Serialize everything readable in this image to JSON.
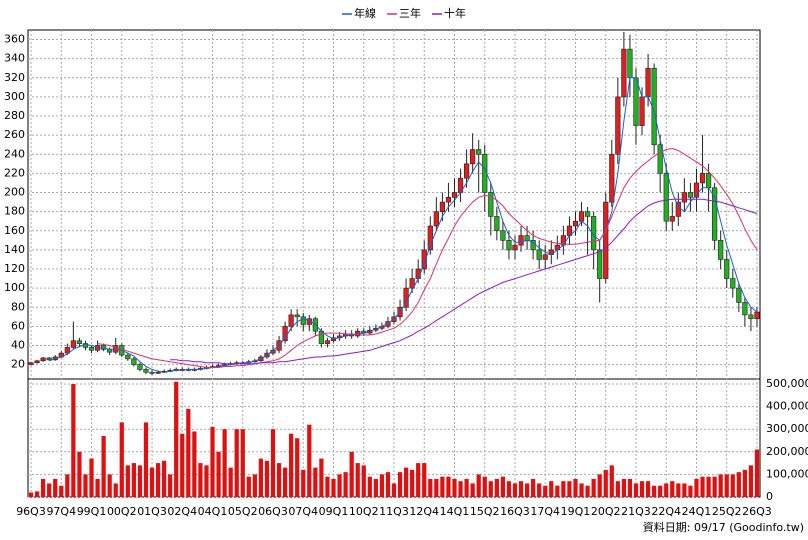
{
  "chart_data": {
    "type": "candlestick",
    "source": "資料日期: 09/17  (Goodinfo.tw)",
    "categories": [
      "96Q3",
      null,
      null,
      null,
      null,
      "97Q4",
      null,
      null,
      null,
      null,
      "99Q1",
      null,
      null,
      null,
      null,
      "00Q2",
      null,
      null,
      null,
      null,
      "01Q3",
      null,
      null,
      null,
      null,
      "02Q4",
      null,
      null,
      null,
      null,
      "04Q1",
      null,
      null,
      null,
      null,
      "05Q2",
      null,
      null,
      null,
      null,
      "06Q3",
      null,
      null,
      null,
      null,
      "07Q4",
      null,
      null,
      null,
      null,
      "09Q1",
      null,
      null,
      null,
      null,
      "10Q2",
      null,
      null,
      null,
      null,
      "11Q3",
      null,
      null,
      null,
      null,
      "12Q4",
      null,
      null,
      null,
      null,
      "14Q1",
      null,
      null,
      null,
      null,
      "15Q2",
      null,
      null,
      null,
      null,
      "16Q3",
      null,
      null,
      null,
      null,
      "17Q4",
      null,
      null,
      null,
      null,
      "19Q1",
      null,
      null,
      null,
      null,
      "20Q2",
      null,
      null,
      null,
      null,
      "21Q3",
      null,
      null,
      null,
      null,
      "22Q4",
      null,
      null,
      null,
      null,
      "24Q1",
      null,
      null,
      null,
      null,
      "25Q2",
      null,
      null,
      null,
      null,
      "26Q3"
    ],
    "open": [
      20,
      22,
      24,
      27,
      25,
      28,
      32,
      38,
      45,
      42,
      38,
      35,
      40,
      36,
      33,
      40,
      30,
      26,
      20,
      15,
      12,
      11,
      12,
      13,
      14,
      15,
      15,
      14,
      15,
      16,
      17,
      18,
      19,
      20,
      21,
      22,
      22,
      23,
      24,
      28,
      32,
      35,
      45,
      60,
      72,
      70,
      62,
      68,
      55,
      42,
      45,
      48,
      50,
      52,
      50,
      55,
      53,
      56,
      58,
      60,
      65,
      70,
      80,
      100,
      110,
      120,
      140,
      165,
      180,
      190,
      195,
      200,
      215,
      230,
      245,
      240,
      200,
      175,
      160,
      150,
      140,
      145,
      155,
      150,
      140,
      130,
      135,
      140,
      145,
      155,
      165,
      170,
      180,
      175,
      140,
      110,
      190,
      240,
      300,
      350,
      320,
      270,
      300,
      330,
      250,
      220,
      170,
      175,
      190,
      200,
      195,
      210,
      220,
      205,
      150,
      130,
      110,
      100,
      85,
      72,
      68
    ],
    "high": [
      23,
      25,
      28,
      28,
      30,
      34,
      42,
      65,
      48,
      45,
      40,
      45,
      42,
      38,
      48,
      42,
      32,
      28,
      22,
      17,
      14,
      14,
      15,
      16,
      17,
      17,
      17,
      17,
      18,
      19,
      20,
      21,
      22,
      23,
      24,
      24,
      25,
      26,
      30,
      36,
      40,
      50,
      65,
      78,
      78,
      74,
      72,
      70,
      58,
      48,
      52,
      54,
      56,
      56,
      58,
      58,
      60,
      62,
      64,
      70,
      75,
      88,
      110,
      120,
      130,
      150,
      175,
      195,
      200,
      210,
      215,
      225,
      245,
      262,
      255,
      250,
      210,
      185,
      170,
      160,
      155,
      165,
      165,
      160,
      150,
      145,
      150,
      155,
      165,
      175,
      180,
      190,
      185,
      180,
      150,
      200,
      255,
      320,
      368,
      365,
      330,
      310,
      345,
      335,
      260,
      230,
      190,
      200,
      215,
      210,
      225,
      260,
      230,
      210,
      160,
      140,
      120,
      105,
      90,
      80,
      80
    ],
    "low": [
      19,
      21,
      23,
      24,
      24,
      27,
      30,
      36,
      38,
      35,
      32,
      33,
      34,
      30,
      31,
      28,
      24,
      18,
      13,
      10,
      9,
      10,
      11,
      12,
      13,
      13,
      13,
      13,
      14,
      15,
      16,
      17,
      18,
      19,
      20,
      20,
      21,
      22,
      23,
      26,
      30,
      32,
      42,
      55,
      60,
      55,
      55,
      50,
      38,
      38,
      43,
      45,
      47,
      47,
      48,
      50,
      51,
      54,
      56,
      58,
      62,
      66,
      76,
      95,
      105,
      115,
      135,
      160,
      170,
      180,
      185,
      190,
      205,
      220,
      200,
      180,
      155,
      150,
      140,
      130,
      130,
      138,
      140,
      130,
      120,
      120,
      125,
      130,
      135,
      145,
      155,
      165,
      135,
      120,
      85,
      105,
      185,
      230,
      290,
      300,
      250,
      260,
      290,
      240,
      200,
      160,
      160,
      165,
      180,
      180,
      180,
      200,
      180,
      140,
      120,
      100,
      90,
      75,
      60,
      55,
      60
    ],
    "close": [
      22,
      24,
      27,
      25,
      28,
      32,
      38,
      45,
      42,
      38,
      35,
      40,
      36,
      33,
      40,
      30,
      26,
      20,
      15,
      12,
      11,
      12,
      13,
      14,
      15,
      15,
      14,
      15,
      16,
      17,
      18,
      19,
      20,
      21,
      22,
      22,
      23,
      24,
      28,
      32,
      35,
      45,
      60,
      72,
      70,
      62,
      68,
      55,
      42,
      45,
      48,
      50,
      52,
      50,
      55,
      53,
      56,
      58,
      60,
      65,
      70,
      80,
      100,
      110,
      120,
      140,
      165,
      180,
      190,
      195,
      200,
      215,
      230,
      245,
      240,
      200,
      175,
      160,
      150,
      140,
      145,
      155,
      150,
      140,
      130,
      135,
      140,
      145,
      155,
      165,
      170,
      180,
      175,
      140,
      110,
      190,
      240,
      300,
      350,
      320,
      270,
      300,
      330,
      250,
      220,
      170,
      175,
      190,
      200,
      195,
      210,
      220,
      205,
      150,
      130,
      110,
      100,
      85,
      72,
      68,
      75
    ],
    "volume": [
      20000,
      25000,
      80000,
      60000,
      80000,
      50000,
      100000,
      500000,
      200000,
      100000,
      170000,
      80000,
      270000,
      100000,
      60000,
      330000,
      140000,
      150000,
      140000,
      330000,
      130000,
      150000,
      160000,
      100000,
      510000,
      280000,
      390000,
      290000,
      150000,
      140000,
      310000,
      200000,
      300000,
      130000,
      300000,
      300000,
      90000,
      100000,
      170000,
      160000,
      300000,
      150000,
      130000,
      280000,
      260000,
      120000,
      320000,
      130000,
      170000,
      90000,
      80000,
      100000,
      110000,
      200000,
      150000,
      140000,
      90000,
      80000,
      100000,
      110000,
      60000,
      110000,
      130000,
      120000,
      150000,
      150000,
      80000,
      80000,
      90000,
      90000,
      80000,
      70000,
      80000,
      60000,
      100000,
      90000,
      70000,
      80000,
      90000,
      70000,
      60000,
      70000,
      60000,
      80000,
      60000,
      50000,
      70000,
      50000,
      70000,
      70000,
      80000,
      60000,
      50000,
      80000,
      100000,
      120000,
      140000,
      70000,
      80000,
      80000,
      60000,
      70000,
      70000,
      50000,
      50000,
      60000,
      70000,
      60000,
      60000,
      50000,
      80000,
      90000,
      90000,
      90000,
      100000,
      100000,
      100000,
      110000,
      120000,
      140000,
      210000
    ],
    "series": [
      {
        "name": "年線",
        "color": "#1a5fd0",
        "values": [
          null,
          null,
          null,
          24,
          26,
          28,
          31,
          36,
          39,
          41,
          40,
          38,
          37,
          36,
          36,
          35,
          32,
          29,
          23,
          18,
          15,
          13,
          12,
          13,
          14,
          14,
          15,
          15,
          15,
          16,
          17,
          18,
          19,
          20,
          21,
          22,
          22,
          24,
          26,
          30,
          35,
          40,
          48,
          58,
          65,
          68,
          66,
          62,
          55,
          50,
          47,
          48,
          50,
          51,
          52,
          53,
          55,
          57,
          60,
          63,
          68,
          75,
          85,
          98,
          110,
          125,
          145,
          160,
          175,
          185,
          192,
          200,
          210,
          222,
          232,
          225,
          210,
          190,
          170,
          155,
          148,
          148,
          150,
          148,
          142,
          138,
          135,
          140,
          145,
          155,
          160,
          170,
          165,
          155,
          150,
          160,
          180,
          220,
          275,
          320,
          320,
          300,
          300,
          285,
          255,
          225,
          200,
          185,
          180,
          190,
          198,
          205,
          205,
          195,
          170,
          145,
          125,
          105,
          90,
          80,
          75
        ]
      },
      {
        "name": "三年",
        "color": "#e0306a",
        "values": [
          null,
          null,
          null,
          null,
          null,
          null,
          null,
          null,
          null,
          null,
          null,
          42,
          41,
          40,
          38,
          36,
          34,
          32,
          30,
          28,
          26,
          25,
          24,
          23,
          22,
          21,
          20,
          19,
          18,
          17,
          17,
          17,
          18,
          18,
          19,
          19,
          20,
          21,
          22,
          23,
          24,
          26,
          30,
          35,
          40,
          44,
          47,
          50,
          52,
          53,
          53,
          53,
          52,
          52,
          51,
          51,
          51,
          52,
          54,
          56,
          58,
          62,
          68,
          75,
          85,
          98,
          110,
          125,
          140,
          152,
          165,
          175,
          183,
          190,
          195,
          197,
          196,
          192,
          186,
          178,
          172,
          166,
          160,
          155,
          152,
          150,
          148,
          147,
          146,
          146,
          146,
          147,
          148,
          149,
          150,
          160,
          175,
          190,
          205,
          215,
          222,
          228,
          233,
          238,
          242,
          245,
          246,
          244,
          240,
          236,
          232,
          228,
          222,
          215,
          207,
          198,
          188,
          176,
          162,
          150,
          140
        ]
      },
      {
        "name": "十年",
        "color": "#8a1ad0",
        "values": [
          null,
          null,
          null,
          null,
          null,
          null,
          null,
          null,
          null,
          null,
          null,
          null,
          null,
          null,
          null,
          null,
          null,
          null,
          null,
          null,
          null,
          null,
          null,
          25,
          25,
          24,
          24,
          23,
          23,
          22,
          22,
          22,
          21,
          21,
          21,
          21,
          21,
          21,
          22,
          22,
          22,
          23,
          23,
          24,
          25,
          26,
          27,
          28,
          28,
          29,
          29,
          30,
          31,
          32,
          33,
          34,
          35,
          37,
          39,
          41,
          43,
          45,
          48,
          51,
          55,
          58,
          62,
          66,
          70,
          74,
          78,
          82,
          86,
          90,
          94,
          97,
          100,
          103,
          106,
          108,
          110,
          112,
          114,
          116,
          118,
          120,
          122,
          124,
          126,
          128,
          130,
          132,
          134,
          136,
          138,
          142,
          148,
          155,
          162,
          170,
          176,
          181,
          186,
          189,
          191,
          192,
          193,
          193,
          193,
          193,
          193,
          193,
          192,
          191,
          190,
          188,
          186,
          184,
          182,
          180,
          178
        ]
      }
    ],
    "up_color": "#e02020",
    "down_color": "#20b020",
    "volume_color": "#e01010",
    "ylim": [
      6,
      370
    ],
    "yticks": [
      20,
      40,
      60,
      80,
      100,
      120,
      140,
      160,
      180,
      200,
      220,
      240,
      260,
      280,
      300,
      320,
      340,
      360
    ],
    "y2lim": [
      0,
      517700
    ],
    "y2ticks": [
      0,
      {
        "value": 100000,
        "label": "100,000"
      },
      {
        "value": 200000,
        "label": "200,000"
      },
      {
        "value": 300000,
        "label": "300,000"
      },
      {
        "value": 400000,
        "label": "400,000"
      },
      {
        "value": 500000,
        "label": "500,000"
      }
    ],
    "grid": true
  }
}
